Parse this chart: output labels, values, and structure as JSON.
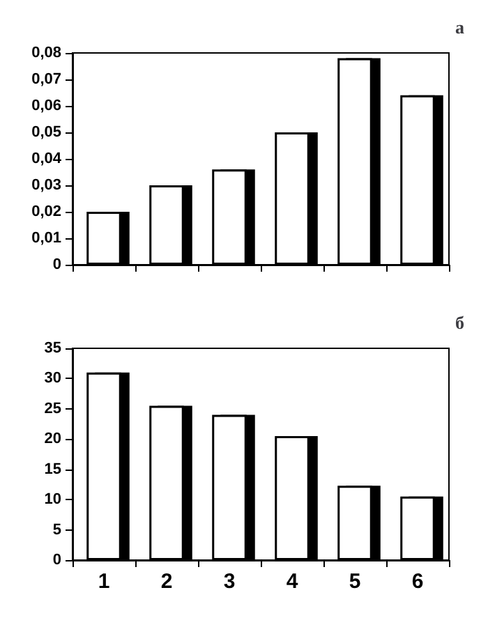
{
  "chart_data": [
    {
      "type": "bar",
      "title": "а",
      "categories": [
        null,
        null,
        null,
        null,
        null,
        null
      ],
      "values": [
        0.02,
        0.03,
        0.036,
        0.05,
        0.078,
        0.064
      ],
      "color": "#ffffff",
      "ylim": [
        0,
        0.08
      ],
      "yticks": [
        0,
        {
          "value": 0.01,
          "label": "0,01"
        },
        {
          "value": 0.02,
          "label": "0,02"
        },
        {
          "value": 0.03,
          "label": "0,03"
        },
        {
          "value": 0.04,
          "label": "0,04"
        },
        {
          "value": 0.05,
          "label": "0,05"
        },
        {
          "value": 0.06,
          "label": "0,06"
        },
        {
          "value": 0.07,
          "label": "0,07"
        },
        {
          "value": 0.08,
          "label": "0,08"
        }
      ],
      "tick_labels": "y"
    },
    {
      "type": "bar",
      "title": "б",
      "categories": [
        "1",
        "2",
        "3",
        "4",
        "5",
        "6"
      ],
      "values": [
        31,
        25.5,
        24,
        20.5,
        12.3,
        10.5
      ],
      "color": "#ffffff",
      "ylim": [
        0,
        35
      ],
      "yticks": [
        0,
        5,
        10,
        15,
        20,
        25,
        30,
        35
      ]
    }
  ]
}
